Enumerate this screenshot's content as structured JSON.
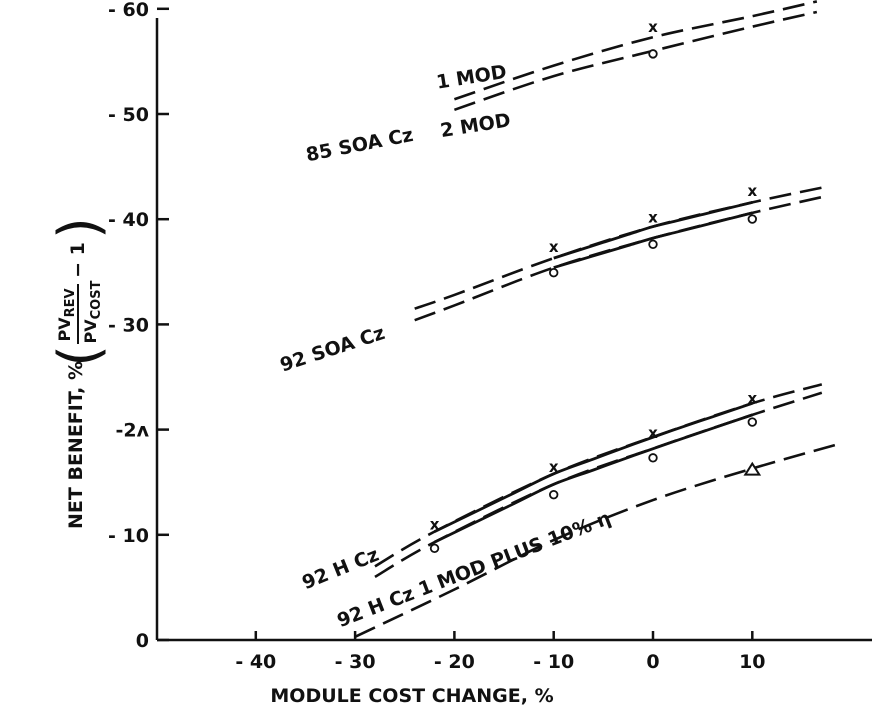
{
  "chart_data": {
    "type": "line",
    "xlabel": "MODULE COST CHANGE, %",
    "ylabel": {
      "prefix": "NET BENEFIT, %",
      "numerator": "PV",
      "numerator_sub": "REV",
      "denominator": "PV",
      "denominator_sub": "COST",
      "suffix": "− 1"
    },
    "xlim": [
      -50,
      22
    ],
    "ylim": [
      0,
      62
    ],
    "x_ticks": [
      {
        "value": -40,
        "label": "- 40"
      },
      {
        "value": -30,
        "label": "- 30"
      },
      {
        "value": -20,
        "label": "- 20"
      },
      {
        "value": -10,
        "label": "- 10"
      },
      {
        "value": 0,
        "label": "0"
      },
      {
        "value": 10,
        "label": "10"
      }
    ],
    "y_ticks": [
      {
        "value": 0,
        "label": "0"
      },
      {
        "value": 10,
        "label": "- 10"
      },
      {
        "value": 20,
        "label": "-2ʌ"
      },
      {
        "value": 30,
        "label": "- 30"
      },
      {
        "value": 40,
        "label": "- 40"
      },
      {
        "value": 50,
        "label": "- 50"
      },
      {
        "value": 60,
        "label": "- 60"
      }
    ],
    "grid": false,
    "legend": "none",
    "series": [
      {
        "id": "85-soa-1mod",
        "dash": true,
        "x": [
          -20,
          -10,
          0,
          10,
          16.5
        ],
        "y": [
          51.4,
          54.6,
          57.3,
          59.3,
          60.7
        ],
        "marks": [
          {
            "x": 0,
            "y": 57.6,
            "symbol": "x"
          }
        ]
      },
      {
        "id": "85-soa-2mod",
        "dash": true,
        "x": [
          -20,
          -10,
          0,
          10,
          16.5
        ],
        "y": [
          50.4,
          53.6,
          56.0,
          58.3,
          59.7
        ],
        "marks": [
          {
            "x": 0,
            "y": 56.0,
            "symbol": "o"
          }
        ]
      },
      {
        "id": "92-soa-upper",
        "dash": true,
        "x": [
          -24,
          -20,
          -10,
          0,
          10,
          17
        ],
        "y": [
          31.5,
          32.8,
          36.3,
          39.3,
          41.6,
          43.0
        ],
        "solid_range": [
          -10,
          10
        ],
        "marks": [
          {
            "x": -10,
            "y": 36.7,
            "symbol": "x"
          },
          {
            "x": 0,
            "y": 39.5,
            "symbol": "x"
          },
          {
            "x": 10,
            "y": 42.0,
            "symbol": "x"
          }
        ]
      },
      {
        "id": "92-soa-lower",
        "dash": true,
        "x": [
          -24,
          -20,
          -10,
          0,
          10,
          17
        ],
        "y": [
          30.4,
          31.8,
          35.4,
          38.2,
          40.6,
          42.1
        ],
        "solid_range": [
          -10,
          10
        ],
        "marks": [
          {
            "x": -10,
            "y": 35.2,
            "symbol": "o"
          },
          {
            "x": 0,
            "y": 37.9,
            "symbol": "o"
          },
          {
            "x": 10,
            "y": 40.3,
            "symbol": "o"
          }
        ]
      },
      {
        "id": "92-h-upper",
        "dash": true,
        "x": [
          -28,
          -22,
          -10,
          0,
          10,
          17
        ],
        "y": [
          7.0,
          10.3,
          15.8,
          19.3,
          22.5,
          24.3
        ],
        "solid_range": [
          -22,
          10
        ],
        "marks": [
          {
            "x": -22,
            "y": 10.3,
            "symbol": "x"
          },
          {
            "x": -10,
            "y": 15.8,
            "symbol": "x"
          },
          {
            "x": 0,
            "y": 19.0,
            "symbol": "x"
          },
          {
            "x": 10,
            "y": 22.3,
            "symbol": "x"
          }
        ]
      },
      {
        "id": "92-h-lower",
        "dash": true,
        "x": [
          -28,
          -22,
          -10,
          0,
          10,
          17
        ],
        "y": [
          6.0,
          9.3,
          14.8,
          18.2,
          21.4,
          23.5
        ],
        "solid_range": [
          -22,
          10
        ],
        "marks": [
          {
            "x": -22,
            "y": 9.0,
            "symbol": "o"
          },
          {
            "x": -10,
            "y": 14.1,
            "symbol": "o"
          },
          {
            "x": 0,
            "y": 17.6,
            "symbol": "o"
          },
          {
            "x": 10,
            "y": 21.0,
            "symbol": "o"
          }
        ]
      },
      {
        "id": "92-h-1mod-plus-10pct",
        "dash": true,
        "x": [
          -30,
          -20,
          -10,
          0,
          10,
          19
        ],
        "y": [
          0.3,
          4.8,
          9.5,
          13.3,
          16.3,
          18.7
        ],
        "marks": [
          {
            "x": 10,
            "y": 16.2,
            "symbol": "triangle"
          }
        ]
      }
    ],
    "annotations": [
      {
        "text": "1 MOD",
        "x": -21.7,
        "y": 52.4,
        "angle": -9
      },
      {
        "text": "2 MOD",
        "x": -21.3,
        "y": 47.8,
        "angle": -9
      },
      {
        "text": "85 SOA Cz",
        "x": -34.8,
        "y": 45.5,
        "angle": -11
      },
      {
        "text": "92 SOA Cz",
        "x": -37.3,
        "y": 25.5,
        "angle": -18
      },
      {
        "text": "92 H Cz",
        "x": -35.0,
        "y": 4.8,
        "angle": -22
      },
      {
        "text": "92 H Cz  1 MOD PLUS 10% η",
        "x": -31.5,
        "y": 1.2,
        "angle": -21
      }
    ]
  }
}
